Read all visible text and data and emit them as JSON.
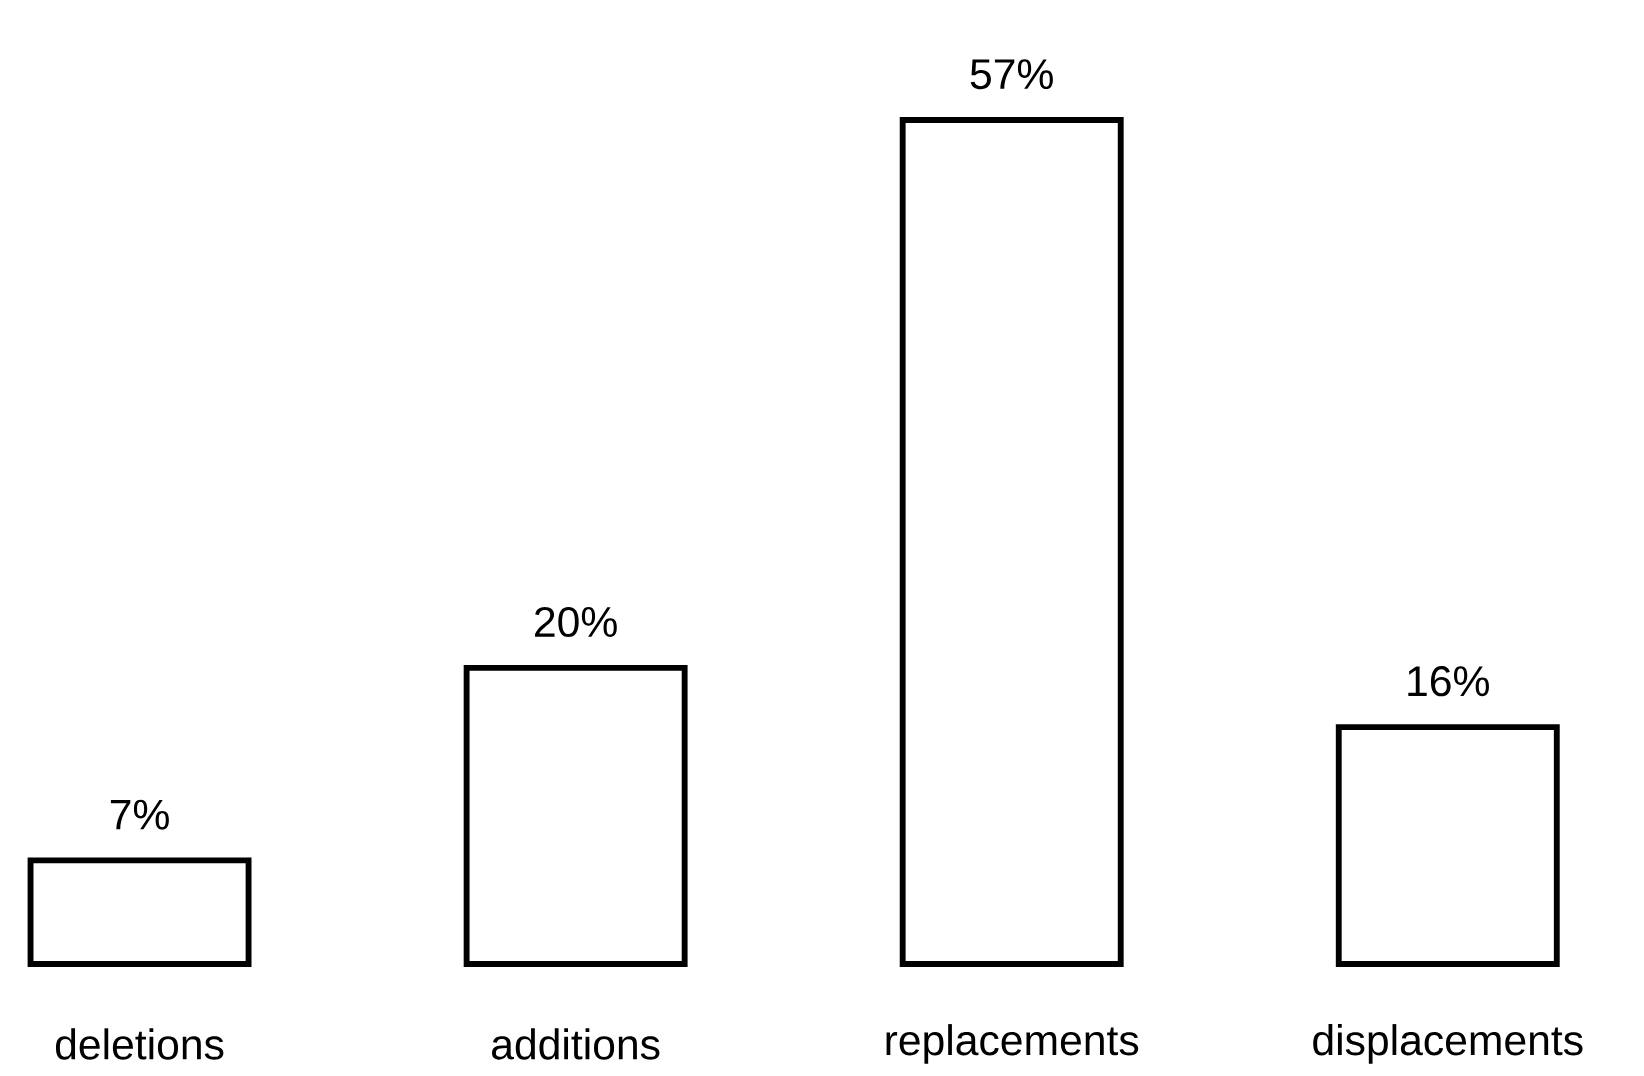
{
  "chart_data": {
    "type": "bar",
    "categories": [
      "deletions",
      "additions",
      "replacements",
      "displacements"
    ],
    "values": [
      7,
      20,
      57,
      16
    ],
    "value_labels": [
      "7%",
      "20%",
      "57%",
      "16%"
    ],
    "color": "#ffffff"
  }
}
